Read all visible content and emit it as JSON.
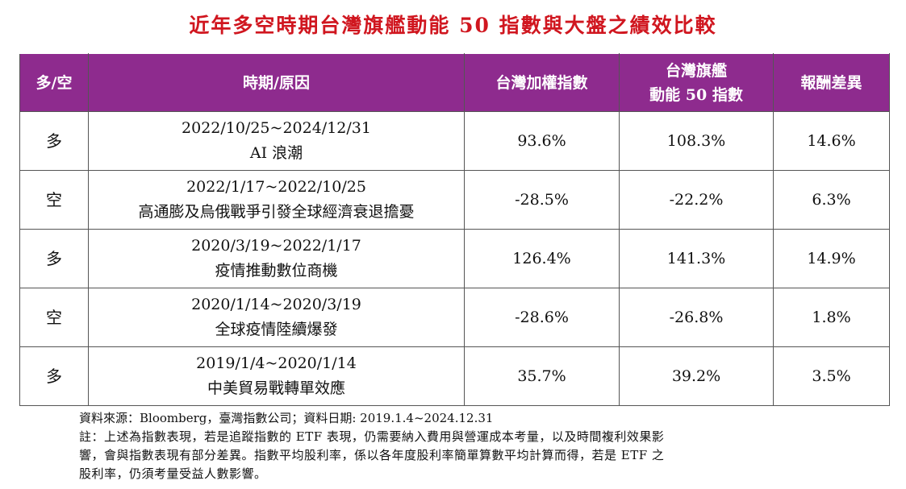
{
  "title": "近年多空時期台灣旗艦動能 50 指數與大盤之績效比較",
  "table": {
    "headers": {
      "direction": "多/空",
      "period": "時期/原因",
      "taiex": "台灣加權指數",
      "index_line1": "台灣旗艦",
      "index_line2": "動能 50 指數",
      "diff": "報酬差異"
    },
    "rows": [
      {
        "direction": "多",
        "dates": "2022/10/25~2024/12/31",
        "reason": "AI 浪潮",
        "taiex": "93.6%",
        "index": "108.3%",
        "diff": "14.6%"
      },
      {
        "direction": "空",
        "dates": "2022/1/17~2022/10/25",
        "reason": "高通膨及烏俄戰爭引發全球經濟衰退擔憂",
        "taiex": "-28.5%",
        "index": "-22.2%",
        "diff": "6.3%"
      },
      {
        "direction": "多",
        "dates": "2020/3/19~2022/1/17",
        "reason": "疫情推動數位商機",
        "taiex": "126.4%",
        "index": "141.3%",
        "diff": "14.9%"
      },
      {
        "direction": "空",
        "dates": "2020/1/14~2020/3/19",
        "reason": "全球疫情陸續爆發",
        "taiex": "-28.6%",
        "index": "-26.8%",
        "diff": "1.8%"
      },
      {
        "direction": "多",
        "dates": "2019/1/4~2020/1/14",
        "reason": "中美貿易戰轉單效應",
        "taiex": "35.7%",
        "index": "39.2%",
        "diff": "3.5%"
      }
    ]
  },
  "notes": {
    "source": "資料來源：Bloomberg，臺灣指數公司；資料日期: 2019.1.4~2024.12.31",
    "disclaimer_line1": "註：上述為指數表現，若是追蹤指數的 ETF 表現，仍需要納入費用與營運成本考量，以及時間複利效果影",
    "disclaimer_line2": "響，會與指數表現有部分差異。指數平均股利率，係以各年度股利率簡單算數平均計算而得，若是 ETF 之",
    "disclaimer_line3": "股利率，仍須考量受益人數影響。"
  },
  "colors": {
    "title": "#d0161f",
    "header_bg": "#8e2b8e",
    "header_text": "#ffffff"
  }
}
